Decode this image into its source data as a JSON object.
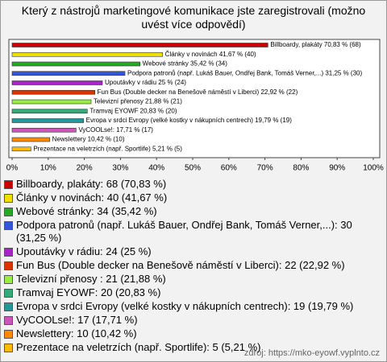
{
  "chart_data": {
    "type": "bar",
    "orientation": "horizontal",
    "title": "Který z nástrojů marketingové komunikace jste zaregistrovali (možno uvést více odpovědí)",
    "categories": [
      "Billboardy, plakáty",
      "Články v novinách",
      "Webové stránky",
      "Podpora patronů (např. Lukáš Bauer, Ondřej Bank, Tomáš Verner,...)",
      "Upoutávky v rádiu",
      "Fun Bus (Double decker na Benešově náměstí v Liberci)",
      "Televizní přenosy",
      "Tramvaj EYOWF",
      "Evropa v srdci Evropy (velké kostky v nákupních centrech)",
      "VyCOOLse!",
      "Newslettery",
      "Prezentace na veletrzích (např. Sportlife)"
    ],
    "values": [
      70.83,
      41.67,
      35.42,
      31.25,
      25,
      22.92,
      21.88,
      20.83,
      19.79,
      17.71,
      10.42,
      5.21
    ],
    "value_labels": [
      "Billboardy, plakáty 70,83 % (68)",
      "Články v novinách 41,67 % (40)",
      "Webové stránky 35,42 % (34)",
      "Podpora patronů (např. Lukáš Bauer, Ondřej Bank, Tomáš Verner,...) 31,25 % (30)",
      "Upoutávky v rádiu 25 % (24)",
      "Fun Bus (Double decker na Benešově náměstí v Liberci) 22,92 % (22)",
      "Televizní přenosy 21,88 % (21)",
      "Tramvaj EYOWF 20,83 % (20)",
      "Evropa v srdci Evropy (velké kostky v nákupních centrech) 19,79 % (19)",
      "VyCOOLse!: 17,71 % (17)",
      "Newslettery 10,42 % (10)",
      "Prezentace na veletrzích (např. Sportlife) 5,21 % (5)"
    ],
    "legend_labels": [
      "Billboardy, plakáty: 68 (70,83 %)",
      "Články v novinách: 40 (41,67 %)",
      "Webové stránky: 34 (35,42 %)",
      "Podpora patronů (např. Lukáš Bauer, Ondřej Bank, Tomáš Verner,...): 30 (31,25 %)",
      "Upoutávky v rádiu: 24 (25 %)",
      "Fun Bus (Double decker na Benešově náměstí v Liberci): 22 (22,92 %)",
      "Televizní přenosy : 21 (21,88 %)",
      "Tramvaj EYOWF: 20 (20,83 %)",
      "Evropa v srdci Evropy (velké kostky v nákupních centrech): 19 (19,79 %)",
      "VyCOOLse!: 17 (17,71 %)",
      "Newslettery: 10 (10,42 %)",
      "Prezentace na veletrzích (např. Sportlife): 5 (5,21 %)"
    ],
    "colors": [
      "#cc0000",
      "#f0e000",
      "#22aa22",
      "#3355dd",
      "#aa22cc",
      "#dd3300",
      "#99ee44",
      "#33aa77",
      "#229999",
      "#cc55bb",
      "#ff8800",
      "#ffbb00"
    ],
    "xlim": [
      0,
      100
    ],
    "xticks": [
      {
        "value": 0,
        "label": "0%"
      },
      {
        "value": 10,
        "label": "10%"
      },
      {
        "value": 20,
        "label": "20%"
      },
      {
        "value": 30,
        "label": "30%"
      },
      {
        "value": 40,
        "label": "40%"
      },
      {
        "value": 50,
        "label": "50%"
      },
      {
        "value": 60,
        "label": "60%"
      },
      {
        "value": 70,
        "label": "70%"
      },
      {
        "value": 80,
        "label": "80%"
      },
      {
        "value": 90,
        "label": "90%"
      },
      {
        "value": 100,
        "label": "100%"
      }
    ],
    "grid": false,
    "source": "zdroj: https://mko-eyowf.vyplnto.cz"
  }
}
